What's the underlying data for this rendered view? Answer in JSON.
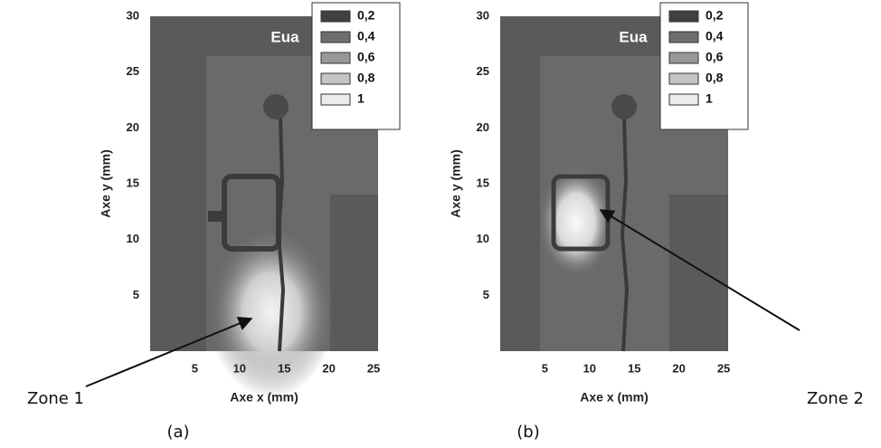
{
  "chart_data": [
    {
      "type": "heatmap",
      "title": "Eua",
      "x_label": "Axe x (mm)",
      "y_label": "Axe y (mm)",
      "xlim": [
        0,
        25.5
      ],
      "ylim": [
        0,
        30
      ],
      "xticks": [
        5,
        10,
        15,
        20,
        25
      ],
      "yticks": [
        5,
        10,
        15,
        20,
        25,
        30
      ],
      "legend": [
        {
          "value": 0.2,
          "label": "0,2",
          "color": "#404040"
        },
        {
          "value": 0.4,
          "label": "0,4",
          "color": "#6e6e6e"
        },
        {
          "value": 0.6,
          "label": "0,6",
          "color": "#989898"
        },
        {
          "value": 0.8,
          "label": "0,8",
          "color": "#c4c4c4"
        },
        {
          "value": 1,
          "label": "1",
          "color": "#ececec"
        }
      ],
      "annotation": "Zone 1",
      "panel_label": "(a)"
    },
    {
      "type": "heatmap",
      "title": "Eua",
      "x_label": "Axe x (mm)",
      "y_label": "Axe y (mm)",
      "xlim": [
        0,
        25.5
      ],
      "ylim": [
        0,
        30
      ],
      "xticks": [
        5,
        10,
        15,
        20,
        25
      ],
      "yticks": [
        5,
        10,
        15,
        20,
        25,
        30
      ],
      "legend": [
        {
          "value": 0.2,
          "label": "0,2",
          "color": "#404040"
        },
        {
          "value": 0.4,
          "label": "0,4",
          "color": "#6e6e6e"
        },
        {
          "value": 0.6,
          "label": "0,6",
          "color": "#989898"
        },
        {
          "value": 0.8,
          "label": "0,8",
          "color": "#c4c4c4"
        },
        {
          "value": 1,
          "label": "1",
          "color": "#ececec"
        }
      ],
      "annotation": "Zone 2",
      "panel_label": "(b)"
    }
  ]
}
